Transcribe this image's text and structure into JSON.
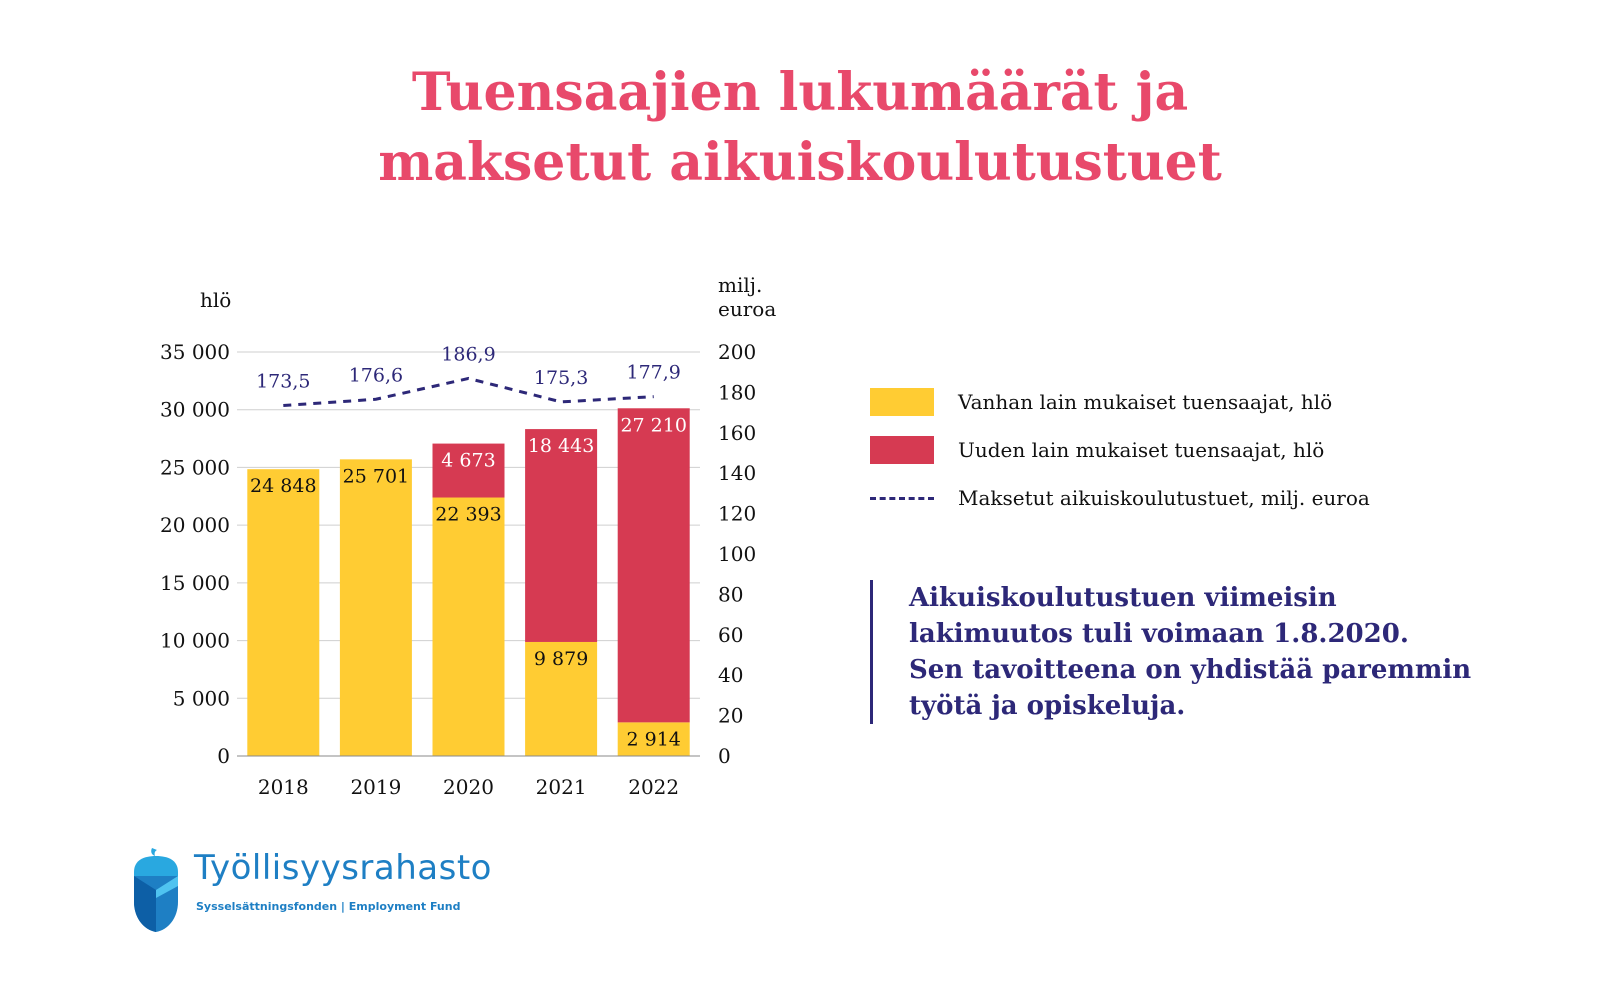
{
  "title": {
    "line1": "Tuensaajien lukumäärät ja",
    "line2": "maksetut aikuiskoulutustuet"
  },
  "colors": {
    "title": "#e8496b",
    "old_law": "#ffcc33",
    "new_law": "#d63a52",
    "line": "#2d2878",
    "logo": "#1e7fc4"
  },
  "chart_data": {
    "type": "bar",
    "stacked": true,
    "categories": [
      "2018",
      "2019",
      "2020",
      "2021",
      "2022"
    ],
    "series": [
      {
        "name": "Vanhan lain mukaiset tuensaajat, hlö",
        "values": [
          24848,
          25701,
          22393,
          9879,
          2914
        ],
        "labels": [
          "24 848",
          "25 701",
          "22 393",
          "9 879",
          "2 914"
        ]
      },
      {
        "name": "Uuden lain mukaiset tuensaajat, hlö",
        "values": [
          0,
          0,
          4673,
          18443,
          27210
        ],
        "labels": [
          "",
          "",
          "4 673",
          "18 443",
          "27 210"
        ]
      }
    ],
    "line_series": {
      "name": "Maksetut aikuiskoulutustuet, milj. euroa",
      "axis": "right",
      "style": "dashed",
      "values": [
        173.5,
        176.6,
        186.9,
        175.3,
        177.9
      ],
      "labels": [
        "173,5",
        "176,6",
        "186,9",
        "175,3",
        "177,9"
      ]
    },
    "y_left": {
      "label": "hlö",
      "range": [
        0,
        35000
      ],
      "ticks": [
        0,
        5000,
        10000,
        15000,
        20000,
        25000,
        30000,
        35000
      ],
      "tick_labels": [
        "0",
        "5 000",
        "10 000",
        "15 000",
        "20 000",
        "25 000",
        "30 000",
        "35 000"
      ]
    },
    "y_right": {
      "label_lines": [
        "milj.",
        "euroa"
      ],
      "range": [
        0,
        200
      ],
      "ticks": [
        0,
        20,
        40,
        60,
        80,
        100,
        120,
        140,
        160,
        180,
        200
      ],
      "tick_labels": [
        "0",
        "20",
        "40",
        "60",
        "80",
        "100",
        "120",
        "140",
        "160",
        "180",
        "200"
      ]
    },
    "grid": true,
    "legend_position": "right"
  },
  "note": {
    "lines": [
      "Aikuiskoulutustuen viimeisin",
      "lakimuutos tuli voimaan 1.8.2020.",
      "Sen tavoitteena on yhdistää paremmin",
      "työtä ja opiskeluja."
    ]
  },
  "logo": {
    "name": "Työllisyysrahasto",
    "subtitle": "Sysselsättningsfonden | Employment Fund",
    "icon": "acorn-icon"
  }
}
